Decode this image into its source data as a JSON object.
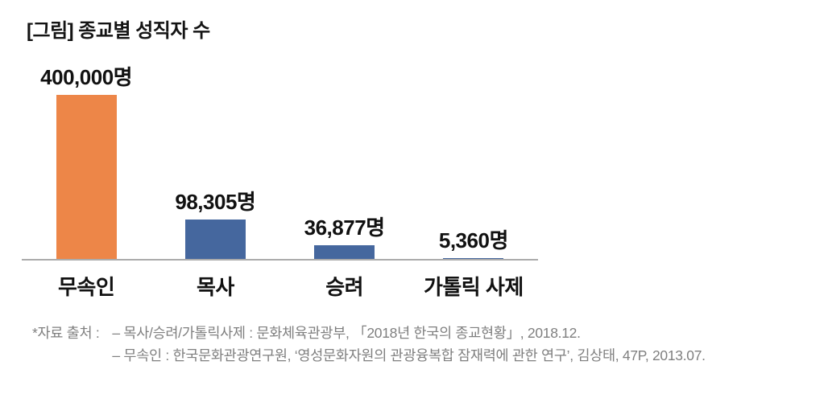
{
  "title": "[그림] 종교별 성직자 수",
  "chart_data": {
    "type": "bar",
    "title": "[그림] 종교별 성직자 수",
    "categories": [
      "무속인",
      "목사",
      "승려",
      "가톨릭 사제"
    ],
    "values": [
      400000,
      98305,
      36877,
      5360
    ],
    "value_labels": [
      "400,000명",
      "98,305명",
      "36,877명",
      "5,360명"
    ],
    "bar_colors": [
      "#ED8648",
      "#45679E",
      "#45679E",
      "#45679E"
    ],
    "xlabel": "",
    "ylabel": "",
    "ylim": [
      0,
      400000
    ],
    "grid": false,
    "legend": "none",
    "y_axis_ticks": "none",
    "orientation": "vertical"
  },
  "footnote": {
    "prefix": "*자료 출처 :",
    "lines": [
      "– 목사/승려/가톨릭사제 : 문화체육관광부, 「2018년 한국의 종교현황」, 2018.12.",
      "– 무속인 : 한국문화관광연구원, ‘영성문화자원의 관광융복합 잠재력에 관한 연구’, 김상태, 47P, 2013.07."
    ]
  },
  "colors": {
    "bar_orange": "#ED8648",
    "bar_blue": "#45679E",
    "axis_line": "#ABABAB",
    "footnote_text": "#7F7F7F",
    "text": "#111111"
  }
}
